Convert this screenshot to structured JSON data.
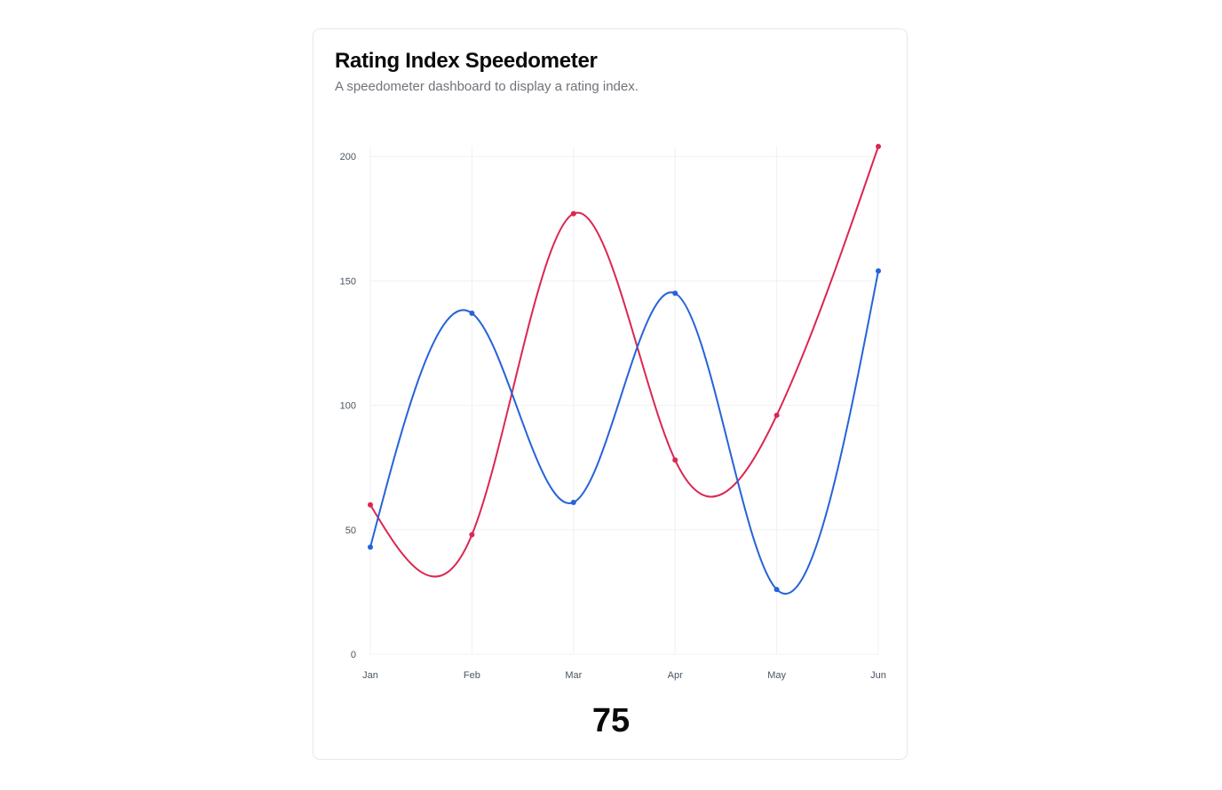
{
  "card": {
    "title": "Rating Index Speedometer",
    "subtitle": "A speedometer dashboard to display a rating index.",
    "value": "75"
  },
  "colors": {
    "series_a": "#dc2650",
    "series_b": "#2563d9",
    "grid": "#f0f0f0"
  },
  "chart_data": {
    "type": "line",
    "categories": [
      "Jan",
      "Feb",
      "Mar",
      "Apr",
      "May",
      "Jun"
    ],
    "series": [
      {
        "values": [
          60,
          48,
          177,
          78,
          96,
          204
        ]
      },
      {
        "values": [
          43,
          137,
          61,
          145,
          26,
          154
        ]
      }
    ],
    "yticks": [
      0,
      50,
      100,
      150,
      200
    ],
    "ylim": [
      0,
      204
    ],
    "grid": true,
    "curve": "smooth"
  }
}
